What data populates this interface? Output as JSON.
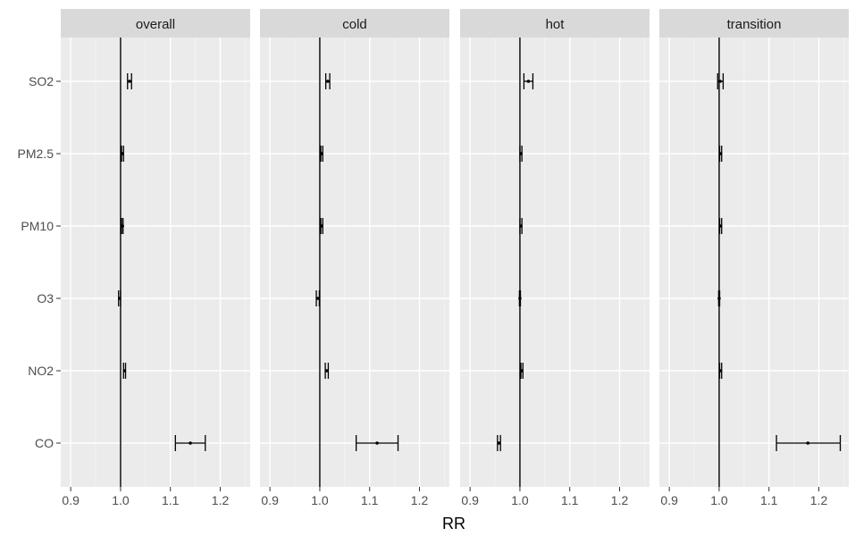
{
  "chart_data": {
    "type": "forest",
    "xlabel": "RR",
    "ylabel": "",
    "xlim": [
      0.88,
      1.26
    ],
    "x_ticks": [
      0.9,
      1.0,
      1.1,
      1.2
    ],
    "x_tick_labels": [
      "0.9",
      "1.0",
      "1.1",
      "1.2"
    ],
    "reference_line": 1.0,
    "grid": true,
    "categories": [
      "SO2",
      "PM2.5",
      "PM10",
      "O3",
      "NO2",
      "CO"
    ],
    "panels": [
      {
        "name": "overall",
        "estimates": [
          {
            "category": "SO2",
            "rr": 1.018,
            "lower": 1.014,
            "upper": 1.022
          },
          {
            "category": "PM2.5",
            "rr": 1.004,
            "lower": 1.002,
            "upper": 1.006
          },
          {
            "category": "PM10",
            "rr": 1.004,
            "lower": 1.002,
            "upper": 1.005
          },
          {
            "category": "O3",
            "rr": 0.998,
            "lower": 0.996,
            "upper": 1.0
          },
          {
            "category": "NO2",
            "rr": 1.008,
            "lower": 1.006,
            "upper": 1.01
          },
          {
            "category": "CO",
            "rr": 1.14,
            "lower": 1.11,
            "upper": 1.17
          }
        ]
      },
      {
        "name": "cold",
        "estimates": [
          {
            "category": "SO2",
            "rr": 1.016,
            "lower": 1.012,
            "upper": 1.02
          },
          {
            "category": "PM2.5",
            "rr": 1.004,
            "lower": 1.002,
            "upper": 1.006
          },
          {
            "category": "PM10",
            "rr": 1.004,
            "lower": 1.002,
            "upper": 1.006
          },
          {
            "category": "O3",
            "rr": 0.996,
            "lower": 0.993,
            "upper": 0.999
          },
          {
            "category": "NO2",
            "rr": 1.014,
            "lower": 1.011,
            "upper": 1.017
          },
          {
            "category": "CO",
            "rr": 1.115,
            "lower": 1.073,
            "upper": 1.157
          }
        ]
      },
      {
        "name": "hot",
        "estimates": [
          {
            "category": "SO2",
            "rr": 1.017,
            "lower": 1.008,
            "upper": 1.026
          },
          {
            "category": "PM2.5",
            "rr": 1.002,
            "lower": 1.0,
            "upper": 1.004
          },
          {
            "category": "PM10",
            "rr": 1.002,
            "lower": 1.0,
            "upper": 1.004
          },
          {
            "category": "O3",
            "rr": 1.0,
            "lower": 0.999,
            "upper": 1.001
          },
          {
            "category": "NO2",
            "rr": 1.004,
            "lower": 1.002,
            "upper": 1.006
          },
          {
            "category": "CO",
            "rr": 0.958,
            "lower": 0.955,
            "upper": 0.961
          }
        ]
      },
      {
        "name": "transition",
        "estimates": [
          {
            "category": "SO2",
            "rr": 1.002,
            "lower": 0.997,
            "upper": 1.008
          },
          {
            "category": "PM2.5",
            "rr": 1.003,
            "lower": 1.001,
            "upper": 1.005
          },
          {
            "category": "PM10",
            "rr": 1.003,
            "lower": 1.001,
            "upper": 1.005
          },
          {
            "category": "O3",
            "rr": 1.0,
            "lower": 0.999,
            "upper": 1.001
          },
          {
            "category": "NO2",
            "rr": 1.003,
            "lower": 1.001,
            "upper": 1.005
          },
          {
            "category": "CO",
            "rr": 1.178,
            "lower": 1.115,
            "upper": 1.243
          }
        ]
      }
    ]
  },
  "colors": {
    "panel_background": "#ebebeb",
    "strip_background": "#d9d9d9",
    "grid_major": "#ffffff",
    "grid_minor": "#f4f4f4",
    "marks": "#000000"
  }
}
